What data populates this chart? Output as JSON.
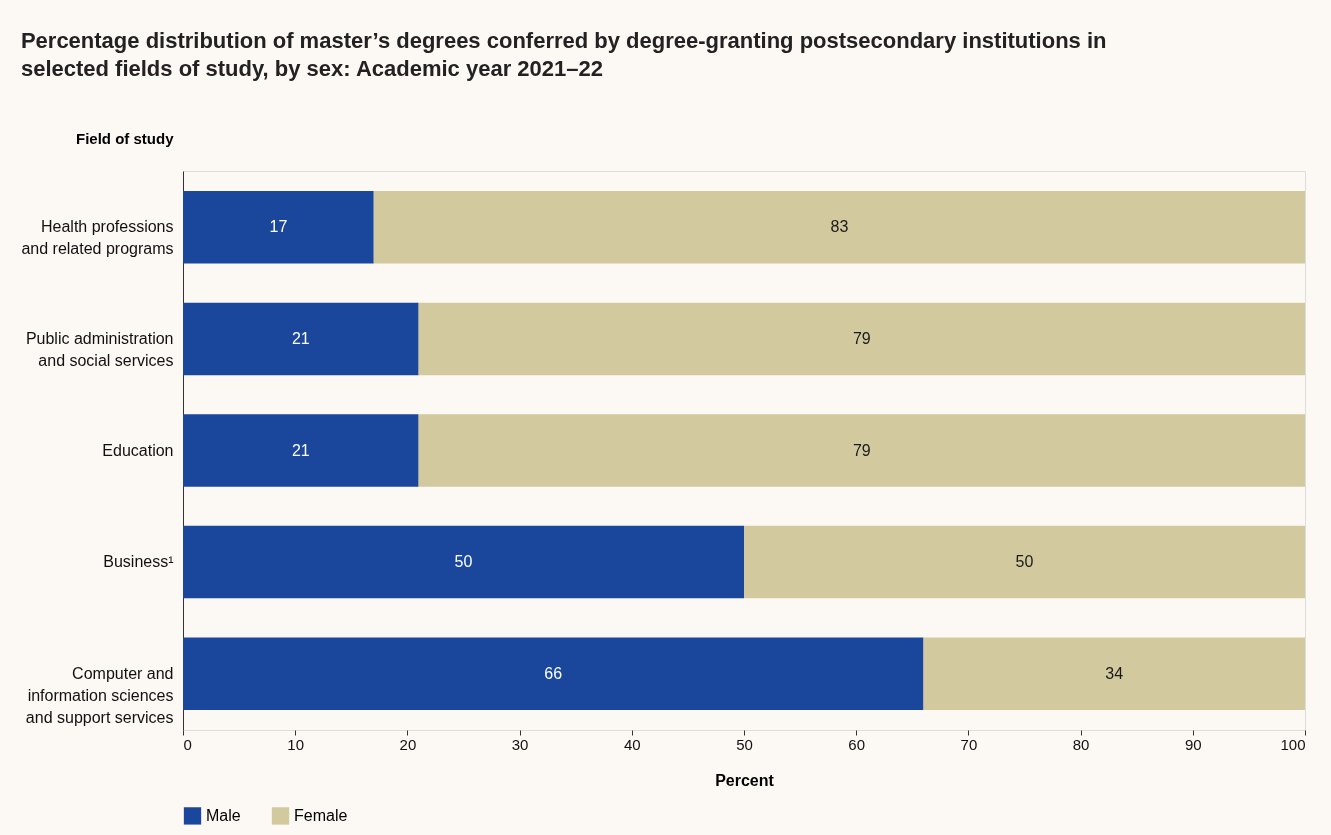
{
  "chart_data": {
    "type": "bar",
    "orientation": "horizontal",
    "stacked": true,
    "title": "Percentage distribution of master’s degrees conferred by degree-granting postsecondary institutions in selected fields of study, by sex: Academic year 2021–22",
    "ylabel": "Field of study",
    "xlabel": "Percent",
    "categories": [
      "Health professions and related programs",
      "Public administration and social services",
      "Education",
      "Business¹",
      "Computer and information sciences and support services"
    ],
    "series": [
      {
        "name": "Male",
        "color": "#1a479b",
        "values": [
          17,
          21,
          21,
          50,
          66
        ]
      },
      {
        "name": "Female",
        "color": "#d3c99e",
        "values": [
          83,
          79,
          79,
          50,
          34
        ]
      }
    ],
    "xlim": [
      0,
      100
    ],
    "xticks": [
      0,
      10,
      20,
      30,
      40,
      50,
      60,
      70,
      80,
      90,
      100
    ],
    "data_labels": true,
    "grid": false,
    "legend": "bottom"
  }
}
